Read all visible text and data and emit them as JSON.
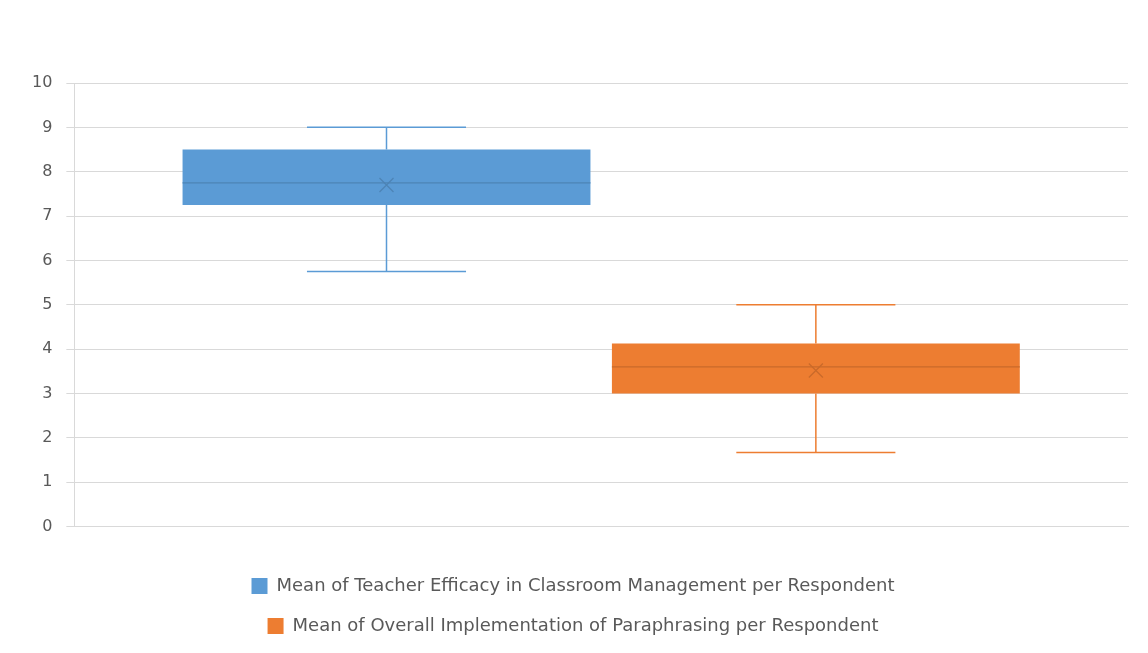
{
  "chart_data": {
    "type": "box",
    "categories": [
      null
    ],
    "series": [
      {
        "name": "Mean of Teacher Efficacy in Classroom Management per Respondent",
        "color": "#5b9bd5",
        "boxes": [
          {
            "low": 5.75,
            "q1": 7.25,
            "median": 7.75,
            "q3": 8.5,
            "high": 9,
            "mean": 7.7
          }
        ]
      },
      {
        "name": "Mean of Overall Implementation of Paraphrasing per Respondent",
        "color": "#ed7d31",
        "boxes": [
          {
            "low": 1.67,
            "q1": 3,
            "median": 3.6,
            "q3": 4.13,
            "high": 5,
            "mean": 3.52
          }
        ]
      }
    ],
    "ylim": [
      0,
      10
    ],
    "yticks": [
      0,
      1,
      2,
      3,
      4,
      5,
      6,
      7,
      8,
      9,
      10
    ],
    "grid": "y",
    "legend": "bottom"
  }
}
